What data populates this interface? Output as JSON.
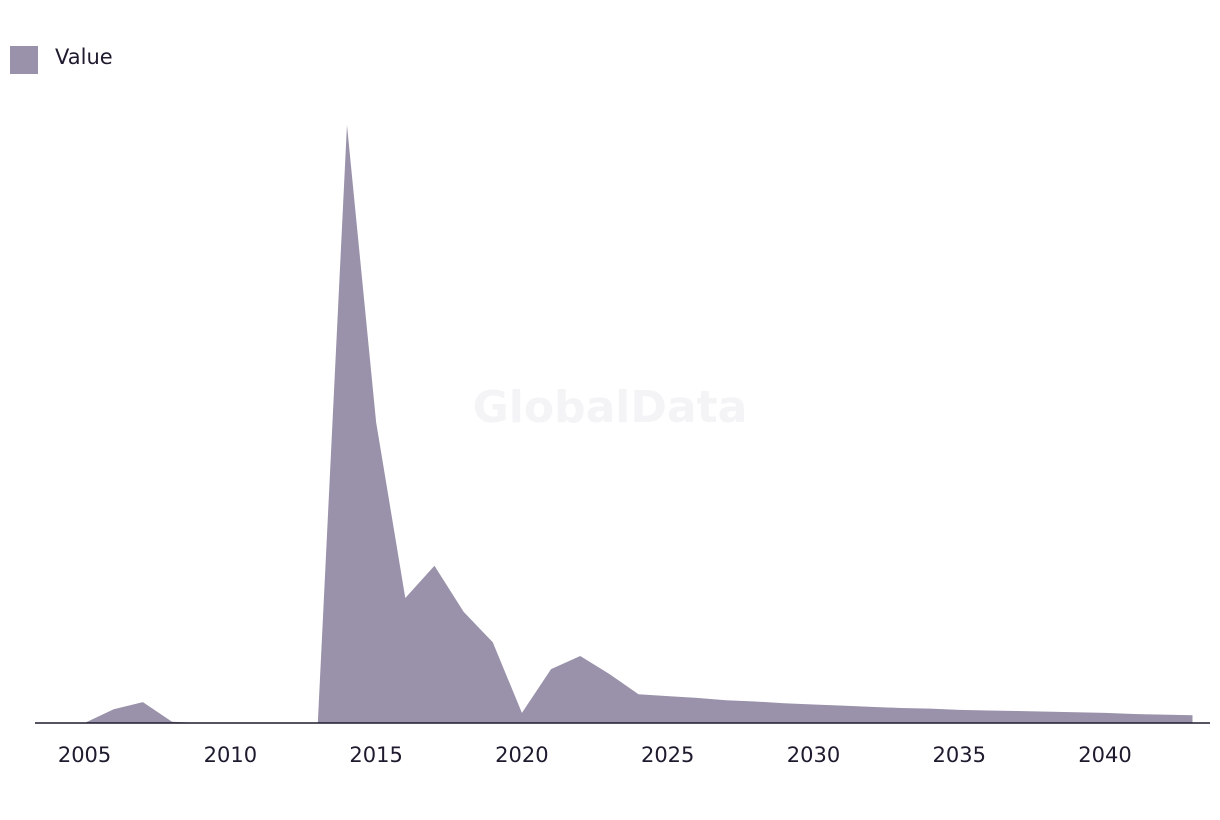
{
  "chart_data": {
    "type": "area",
    "watermark": "GlobalData",
    "x": [
      2005,
      2006,
      2007,
      2008,
      2009,
      2010,
      2011,
      2012,
      2013,
      2014,
      2015,
      2016,
      2017,
      2018,
      2019,
      2020,
      2021,
      2022,
      2023,
      2024,
      2025,
      2026,
      2027,
      2028,
      2029,
      2030,
      2031,
      2032,
      2033,
      2034,
      2035,
      2036,
      2037,
      2038,
      2039,
      2040,
      2041,
      2042,
      2043
    ],
    "series": [
      {
        "name": "Value",
        "color": "#9a92aa",
        "values": [
          0,
          2.3,
          3.5,
          0.2,
          0,
          0,
          0,
          0,
          0,
          100,
          50.3,
          20.9,
          26.3,
          18.6,
          13.5,
          1.7,
          9.0,
          11.2,
          8.2,
          4.8,
          4.5,
          4.2,
          3.8,
          3.6,
          3.3,
          3.1,
          2.9,
          2.7,
          2.5,
          2.4,
          2.2,
          2.1,
          2.0,
          1.9,
          1.8,
          1.7,
          1.5,
          1.4,
          1.3
        ]
      }
    ],
    "xlim": [
      2003.3,
      2043.6
    ],
    "xticks": [
      2005,
      2010,
      2015,
      2020,
      2025,
      2030,
      2035,
      2040
    ],
    "ylim": [
      0,
      100
    ],
    "legend": "top-left"
  }
}
